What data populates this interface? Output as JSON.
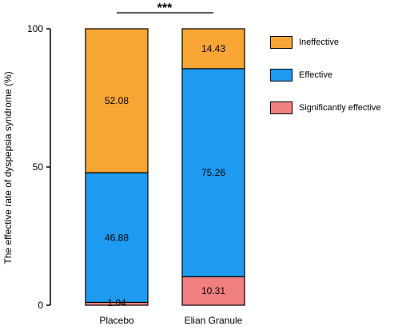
{
  "chart_data": {
    "type": "bar",
    "stacked": true,
    "title": "",
    "xlabel": "",
    "ylabel": "The effective rate of dyspepsia syndrome  (%)",
    "ylim": [
      0,
      100
    ],
    "yticks": [
      0,
      50,
      100
    ],
    "categories": [
      "Placebo",
      "Elian Granule"
    ],
    "series": [
      {
        "name": "Significantly effective",
        "color": "#f08080",
        "values": [
          1.04,
          10.31
        ],
        "labels": [
          "1.04",
          "10.31"
        ]
      },
      {
        "name": "Effective",
        "color": "#1e9bf0",
        "values": [
          46.88,
          75.26
        ],
        "labels": [
          "46.88",
          "75.26"
        ]
      },
      {
        "name": "Ineffective",
        "color": "#f7a535",
        "values": [
          52.08,
          14.43
        ],
        "labels": [
          "52.08",
          "14.43"
        ]
      }
    ],
    "significance": "***",
    "legend_position": "right",
    "grid": false
  },
  "legend_order": [
    "Ineffective",
    "Effective",
    "Significantly effective"
  ]
}
